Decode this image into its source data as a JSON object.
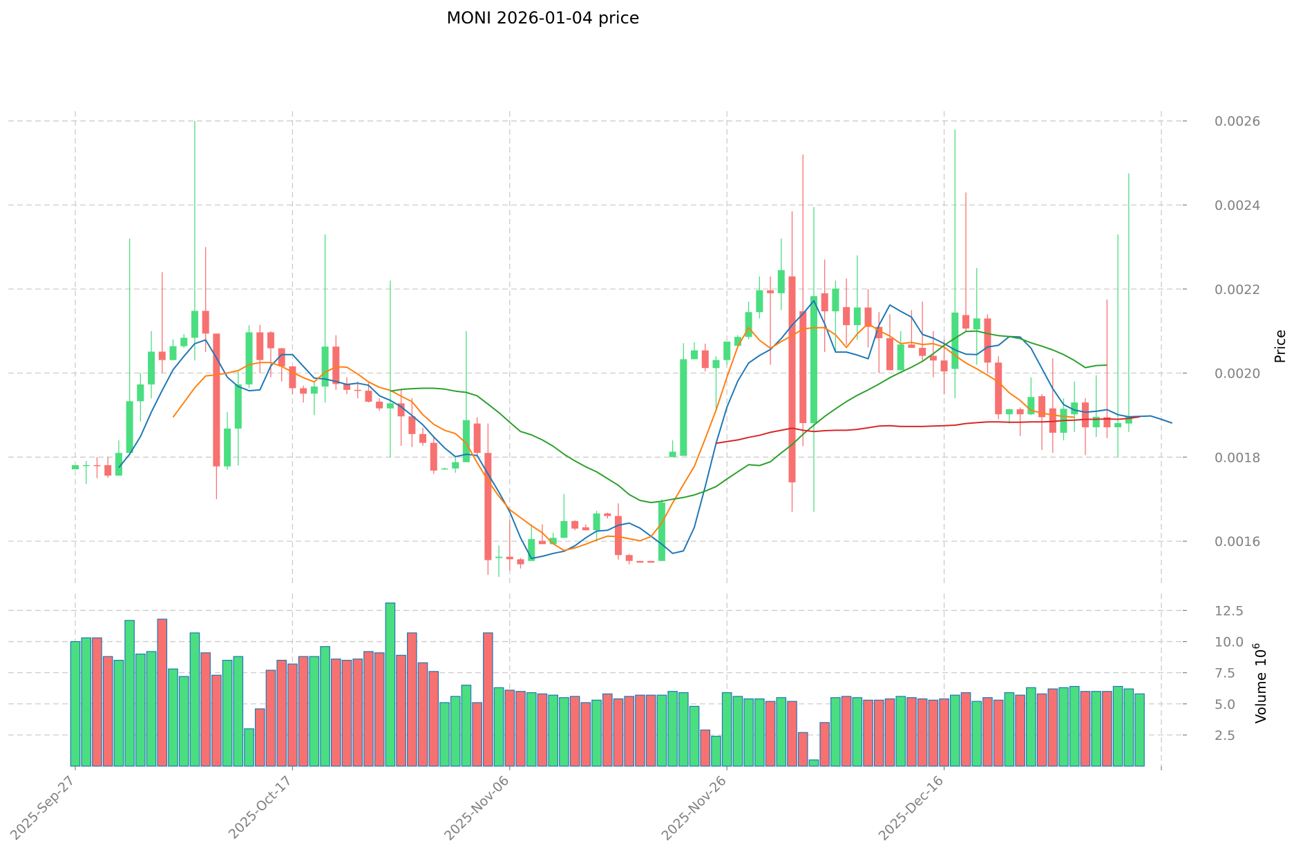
{
  "colors": {
    "up": "#4ade80",
    "down": "#f87171",
    "up_wick": "#4ade80",
    "down_wick": "#f87171",
    "volume_edge": "#1f77b4",
    "ma_short": "#1f77b4",
    "ma_mid": "#ff7f0e",
    "ma_long": "#2ca02c",
    "ma_longest": "#d62728",
    "grid": "#cccccc",
    "tick_text": "#808080"
  },
  "chart_data": {
    "type": "candlestick",
    "title": "MONI  2026-01-04  price",
    "ylabel": "Price",
    "volume_ylabel": "Volume",
    "volume_exponent_base": "10",
    "volume_exponent": "6",
    "ylim": [
      0.0015,
      0.00262
    ],
    "volume_ylim": [
      0,
      13.3
    ],
    "start_date": "2025-09-27",
    "x_tick_labels": [
      "2025-Sep-27",
      "2025-Oct-17",
      "2025-Nov-06",
      "2025-Nov-26",
      "2025-Dec-16"
    ],
    "x_tick_day_index": [
      0,
      20,
      40,
      60,
      80
    ],
    "x_axis_day_range": [
      -1,
      100
    ],
    "y_tick_labels": [
      "0.0016",
      "0.0018",
      "0.0020",
      "0.0022",
      "0.0024",
      "0.0026"
    ],
    "y_tick_values": [
      0.0016,
      0.0018,
      0.002,
      0.0022,
      0.0024,
      0.0026
    ],
    "volume_tick_labels": [
      "2.5",
      "5.0",
      "7.5",
      "10.0",
      "12.5"
    ],
    "volume_tick_values": [
      2.5,
      5.0,
      7.5,
      10.0,
      12.5
    ],
    "candles": [
      [
        0.001771,
        0.001781,
        0.001771,
        0.001781
      ],
      [
        0.001781,
        0.001791,
        0.001736,
        0.001781
      ],
      [
        0.001781,
        0.0018,
        0.00175,
        0.00178
      ],
      [
        0.001781,
        0.001801,
        0.001751,
        0.001756
      ],
      [
        0.001756,
        0.00184,
        0.001756,
        0.00181
      ],
      [
        0.00181,
        0.00232,
        0.00181,
        0.001933
      ],
      [
        0.001933,
        0.002,
        0.001885,
        0.001973
      ],
      [
        0.001973,
        0.0021,
        0.00194,
        0.002051
      ],
      [
        0.002051,
        0.00224,
        0.002,
        0.002031
      ],
      [
        0.002031,
        0.00208,
        0.00203,
        0.002064
      ],
      [
        0.002064,
        0.002093,
        0.00206,
        0.002084
      ],
      [
        0.002084,
        0.0026,
        0.00203,
        0.002148
      ],
      [
        0.002148,
        0.0023,
        0.00205,
        0.002094
      ],
      [
        0.002094,
        0.002094,
        0.0017,
        0.001778
      ],
      [
        0.001778,
        0.001907,
        0.00177,
        0.001868
      ],
      [
        0.001868,
        0.002004,
        0.00178,
        0.001973
      ],
      [
        0.001973,
        0.002114,
        0.001964,
        0.002097
      ],
      [
        0.002097,
        0.002115,
        0.002,
        0.002031
      ],
      [
        0.002097,
        0.0021,
        0.00199,
        0.002059
      ],
      [
        0.002059,
        0.00206,
        0.00198,
        0.002016
      ],
      [
        0.002016,
        0.002016,
        0.00195,
        0.001964
      ],
      [
        0.001964,
        0.00197,
        0.00193,
        0.001951
      ],
      [
        0.001951,
        0.00198,
        0.0019,
        0.001968
      ],
      [
        0.001968,
        0.00233,
        0.00193,
        0.002063
      ],
      [
        0.002063,
        0.00209,
        0.00196,
        0.001974
      ],
      [
        0.001974,
        0.00199,
        0.00195,
        0.00196
      ],
      [
        0.00196,
        0.00198,
        0.00194,
        0.001958
      ],
      [
        0.001958,
        0.00198,
        0.00193,
        0.001932
      ],
      [
        0.001932,
        0.00194,
        0.00191,
        0.001916
      ],
      [
        0.001916,
        0.00222,
        0.0018,
        0.001928
      ],
      [
        0.001928,
        0.00196,
        0.001827,
        0.001897
      ],
      [
        0.001897,
        0.00194,
        0.001824,
        0.001855
      ],
      [
        0.001855,
        0.00187,
        0.001827,
        0.001834
      ],
      [
        0.001834,
        0.00185,
        0.00176,
        0.001768
      ],
      [
        0.001773,
        0.001775,
        0.00177,
        0.001773
      ],
      [
        0.001773,
        0.0018,
        0.001763,
        0.001788
      ],
      [
        0.001788,
        0.0021,
        0.001788,
        0.001888
      ],
      [
        0.00188,
        0.001895,
        0.001802,
        0.00181
      ],
      [
        0.00181,
        0.00188,
        0.00152,
        0.001555
      ],
      [
        0.00156,
        0.00159,
        0.001515,
        0.001563
      ],
      [
        0.001563,
        0.00165,
        0.00153,
        0.001557
      ],
      [
        0.001557,
        0.00156,
        0.001535,
        0.001545
      ],
      [
        0.001553,
        0.00164,
        0.001553,
        0.001605
      ],
      [
        0.001601,
        0.00164,
        0.0016,
        0.001593
      ],
      [
        0.001593,
        0.00162,
        0.001593,
        0.001608
      ],
      [
        0.001608,
        0.001712,
        0.001608,
        0.001648
      ],
      [
        0.001648,
        0.00165,
        0.001626,
        0.00163
      ],
      [
        0.001633,
        0.00164,
        0.001626,
        0.001626
      ],
      [
        0.001626,
        0.001672,
        0.0016,
        0.001666
      ],
      [
        0.001666,
        0.001668,
        0.001654,
        0.00166
      ],
      [
        0.00166,
        0.00169,
        0.001556,
        0.001567
      ],
      [
        0.001567,
        0.00157,
        0.001545,
        0.001553
      ],
      [
        0.001553,
        0.001553,
        0.001549,
        0.001549
      ],
      [
        0.001553,
        0.001553,
        0.001549,
        0.001549
      ],
      [
        0.001553,
        0.0017,
        0.001553,
        0.001692
      ],
      [
        0.0018,
        0.00184,
        0.001802,
        0.001813
      ],
      [
        0.001803,
        0.002071,
        0.001803,
        0.002033
      ],
      [
        0.002033,
        0.002073,
        0.002033,
        0.002054
      ],
      [
        0.002054,
        0.00207,
        0.002004,
        0.002012
      ],
      [
        0.002012,
        0.00204,
        0.00191,
        0.002031
      ],
      [
        0.002031,
        0.002075,
        0.00202,
        0.002075
      ],
      [
        0.002065,
        0.00209,
        0.002065,
        0.002086
      ],
      [
        0.002086,
        0.00217,
        0.00208,
        0.002145
      ],
      [
        0.002145,
        0.00223,
        0.00213,
        0.002197
      ],
      [
        0.002197,
        0.00223,
        0.00202,
        0.00219
      ],
      [
        0.00219,
        0.00232,
        0.00215,
        0.002245
      ],
      [
        0.00223,
        0.002385,
        0.00167,
        0.00174
      ],
      [
        0.002147,
        0.00252,
        0.001826,
        0.001881
      ],
      [
        0.001881,
        0.002395,
        0.00167,
        0.002183
      ],
      [
        0.00219,
        0.00227,
        0.00205,
        0.002147
      ],
      [
        0.002147,
        0.00222,
        0.00205,
        0.002201
      ],
      [
        0.002157,
        0.002225,
        0.002067,
        0.002114
      ],
      [
        0.002114,
        0.00228,
        0.002079,
        0.002156
      ],
      [
        0.002156,
        0.0022,
        0.002061,
        0.00211
      ],
      [
        0.00211,
        0.002145,
        0.002,
        0.002083
      ],
      [
        0.002083,
        0.00214,
        0.002006,
        0.002007
      ],
      [
        0.002007,
        0.0021,
        0.002006,
        0.002068
      ],
      [
        0.002068,
        0.00215,
        0.00206,
        0.00206
      ],
      [
        0.00206,
        0.00217,
        0.00203,
        0.002041
      ],
      [
        0.002041,
        0.0021,
        0.00199,
        0.00203
      ],
      [
        0.00203,
        0.00208,
        0.00195,
        0.002004
      ],
      [
        0.00201,
        0.00258,
        0.00194,
        0.002144
      ],
      [
        0.002138,
        0.00243,
        0.002098,
        0.002106
      ],
      [
        0.002104,
        0.00225,
        0.00202,
        0.00213
      ],
      [
        0.00213,
        0.00214,
        0.002,
        0.002025
      ],
      [
        0.002025,
        0.00204,
        0.00189,
        0.001902
      ],
      [
        0.001902,
        0.001915,
        0.00188,
        0.001914
      ],
      [
        0.001914,
        0.001918,
        0.00185,
        0.001902
      ],
      [
        0.001902,
        0.00199,
        0.0019,
        0.001943
      ],
      [
        0.001945,
        0.00195,
        0.001817,
        0.001895
      ],
      [
        0.001916,
        0.002035,
        0.00181,
        0.001858
      ],
      [
        0.001858,
        0.00194,
        0.00184,
        0.001915
      ],
      [
        0.001902,
        0.00198,
        0.00186,
        0.00193
      ],
      [
        0.00193,
        0.00194,
        0.001805,
        0.001871
      ],
      [
        0.001871,
        0.001995,
        0.001848,
        0.001896
      ],
      [
        0.001895,
        0.002175,
        0.001845,
        0.001871
      ],
      [
        0.001871,
        0.00233,
        0.0018,
        0.001881
      ],
      [
        0.00188,
        0.002475,
        0.00186,
        0.001897
      ]
    ],
    "volume_millions": [
      10.0,
      10.3,
      10.3,
      8.8,
      8.5,
      11.7,
      9.0,
      9.2,
      11.8,
      7.8,
      7.2,
      10.7,
      9.1,
      7.3,
      8.5,
      8.8,
      3.0,
      4.6,
      7.7,
      8.5,
      8.2,
      8.8,
      8.8,
      9.6,
      8.6,
      8.5,
      8.6,
      9.2,
      9.1,
      13.1,
      8.9,
      10.7,
      8.3,
      7.6,
      5.1,
      5.6,
      6.5,
      5.1,
      10.7,
      6.3,
      6.1,
      6.0,
      5.9,
      5.8,
      5.7,
      5.5,
      5.6,
      5.1,
      5.3,
      5.8,
      5.4,
      5.6,
      5.7,
      5.7,
      5.7,
      6.0,
      5.9,
      4.8,
      2.9,
      2.4,
      5.9,
      5.6,
      5.4,
      5.4,
      5.2,
      5.5,
      5.2,
      2.7,
      0.5,
      3.5,
      5.5,
      5.6,
      5.5,
      5.3,
      5.3,
      5.4,
      5.6,
      5.5,
      5.4,
      5.3,
      5.4,
      5.7,
      5.9,
      5.2,
      5.5,
      5.3,
      5.9,
      5.7,
      6.3,
      5.8,
      6.2,
      6.3,
      6.4,
      6.0,
      6.0,
      6.0,
      6.4,
      6.2,
      5.8
    ],
    "series": [
      {
        "name": "MA short",
        "color_key": "ma_short",
        "start": 4,
        "values": [
          0.001775,
          0.001807,
          0.001849,
          0.001907,
          0.001959,
          0.002008,
          0.00204,
          0.00207,
          0.002079,
          0.002036,
          0.00199,
          0.001968,
          0.001958,
          0.00196,
          0.002017,
          0.002044,
          0.002044,
          0.002016,
          0.001988,
          0.001986,
          0.00198,
          0.001973,
          0.001976,
          0.001971,
          0.001946,
          0.001935,
          0.00192,
          0.001899,
          0.001877,
          0.001848,
          0.001822,
          0.001801,
          0.001807,
          0.001804,
          0.00176,
          0.001717,
          0.00167,
          0.001608,
          0.001559,
          0.001564,
          0.001571,
          0.001576,
          0.001589,
          0.001608,
          0.001624,
          0.001626,
          0.001638,
          0.001643,
          0.001631,
          0.001612,
          0.001593,
          0.001571,
          0.001577,
          0.001633,
          0.00173,
          0.001833,
          0.001919,
          0.001981,
          0.002024,
          0.002042,
          0.002056,
          0.002082,
          0.002114,
          0.002141,
          0.002172,
          0.002117,
          0.00205,
          0.00205,
          0.002043,
          0.002034,
          0.002114,
          0.002162,
          0.002147,
          0.002133,
          0.002092,
          0.002083,
          0.00207,
          0.002055,
          0.002045,
          0.002044,
          0.002062,
          0.002066,
          0.002087,
          0.002086,
          0.002059,
          0.002011,
          0.001963,
          0.001925,
          0.001912,
          0.001907,
          0.001909,
          0.001913,
          0.001901,
          0.001896,
          0.001897,
          0.001898,
          0.00189,
          0.001881
        ]
      },
      {
        "name": "MA mid",
        "color_key": "ma_mid",
        "start": 9,
        "values": [
          0.001895,
          0.00193,
          0.001965,
          0.001993,
          0.001996,
          0.002,
          0.002006,
          0.00202,
          0.002025,
          0.002025,
          0.002016,
          0.002002,
          0.001989,
          0.001979,
          0.002002,
          0.002015,
          0.002014,
          0.001998,
          0.001979,
          0.001966,
          0.001959,
          0.001945,
          0.001932,
          0.001901,
          0.001878,
          0.001864,
          0.001856,
          0.001833,
          0.001787,
          0.001744,
          0.001707,
          0.001675,
          0.001656,
          0.001637,
          0.00162,
          0.001594,
          0.001578,
          0.001584,
          0.001593,
          0.001603,
          0.001612,
          0.001611,
          0.001606,
          0.001601,
          0.001611,
          0.001643,
          0.001691,
          0.001735,
          0.001778,
          0.001844,
          0.001912,
          0.00199,
          0.002063,
          0.002108,
          0.002078,
          0.002059,
          0.002075,
          0.002089,
          0.002105,
          0.002108,
          0.002108,
          0.002091,
          0.002061,
          0.002093,
          0.002118,
          0.002101,
          0.002088,
          0.00207,
          0.002073,
          0.002068,
          0.00207,
          0.002062,
          0.002042,
          0.002024,
          0.00201,
          0.001995,
          0.001979,
          0.001953,
          0.001935,
          0.001911,
          0.001905,
          0.0019,
          0.001897,
          0.001895
        ]
      },
      {
        "name": "MA long",
        "color_key": "ma_long",
        "start": 29,
        "values": [
          0.001957,
          0.001961,
          0.001963,
          0.001964,
          0.001964,
          0.001962,
          0.001957,
          0.001954,
          0.001946,
          0.001926,
          0.001906,
          0.001883,
          0.001861,
          0.001853,
          0.001841,
          0.001826,
          0.001807,
          0.001791,
          0.001777,
          0.001765,
          0.001749,
          0.001733,
          0.001711,
          0.001697,
          0.001692,
          0.001695,
          0.0017,
          0.001704,
          0.00171,
          0.001719,
          0.00173,
          0.001748,
          0.001765,
          0.001782,
          0.00178,
          0.001789,
          0.00181,
          0.00183,
          0.001854,
          0.001876,
          0.001897,
          0.001915,
          0.001932,
          0.001947,
          0.00196,
          0.001974,
          0.001989,
          0.002002,
          0.002014,
          0.002028,
          0.002046,
          0.002066,
          0.002083,
          0.002099,
          0.0021,
          0.002094,
          0.002089,
          0.002087,
          0.002082,
          0.002072,
          0.002064,
          0.002055,
          0.002044,
          0.00203,
          0.002013,
          0.002018,
          0.002019
        ]
      },
      {
        "name": "MA longest",
        "color_key": "ma_longest",
        "start": 59,
        "values": [
          0.001833,
          0.001837,
          0.001841,
          0.001847,
          0.001852,
          0.001859,
          0.001864,
          0.001869,
          0.001864,
          0.001861,
          0.001863,
          0.001864,
          0.001864,
          0.001866,
          0.00187,
          0.001874,
          0.001875,
          0.001873,
          0.001873,
          0.001873,
          0.001874,
          0.001875,
          0.001876,
          0.00188,
          0.001882,
          0.001884,
          0.001884,
          0.001883,
          0.001883,
          0.001884,
          0.001884,
          0.001885,
          0.001887,
          0.001888,
          0.00189,
          0.00189,
          0.001891,
          0.00189,
          0.001892,
          0.001896
        ]
      }
    ]
  }
}
